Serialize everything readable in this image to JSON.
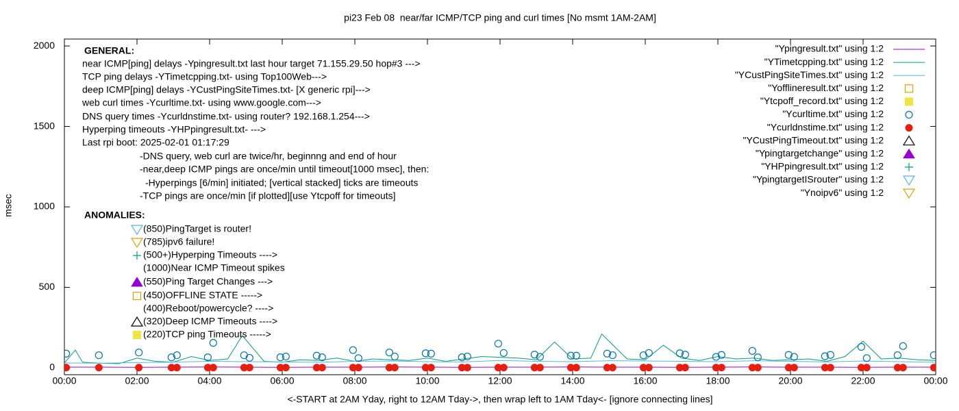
{
  "chart_data": {
    "type": "line",
    "title": "pi23 Feb 08  near/far ICMP/TCP ping and curl times [No msmt 1AM-2AM]",
    "xlabel": "<-START at 2AM Yday, right to 12AM Tday->, then wrap left to 1AM Tday<- [ignore connecting lines]",
    "ylabel": "msec",
    "xlim": [
      0,
      24
    ],
    "xticks": [
      {
        "value": 0,
        "label": "00:00"
      },
      {
        "value": 2,
        "label": "02:00"
      },
      {
        "value": 4,
        "label": "04:00"
      },
      {
        "value": 6,
        "label": "06:00"
      },
      {
        "value": 8,
        "label": "08:00"
      },
      {
        "value": 10,
        "label": "10:00"
      },
      {
        "value": 12,
        "label": "12:00"
      },
      {
        "value": 14,
        "label": "14:00"
      },
      {
        "value": 16,
        "label": "16:00"
      },
      {
        "value": 18,
        "label": "18:00"
      },
      {
        "value": 20,
        "label": "20:00"
      },
      {
        "value": 22,
        "label": "22:00"
      },
      {
        "value": 24,
        "label": "00:00"
      }
    ],
    "ylim": [
      -43,
      2043
    ],
    "yticks": [
      0,
      500,
      1000,
      1500,
      2000
    ],
    "grid": false,
    "legend_position": "top-right",
    "annotations": [
      "GENERAL:",
      "near ICMP[ping] delays -Ypingresult.txt last hour target 71.155.29.50 hop#3 --->",
      "TCP ping delays -YTimetcpping.txt- using Top100Web--->",
      "deep ICMP[ping] delays -YCustPingSiteTimes.txt- [X generic rpi]--->",
      "web curl times -Ycurltime.txt- using www.google.com--->",
      "DNS query times -Ycurldnstime.txt- using router? 192.168.1.254--->",
      "Hyperping timeouts -YHPpingresult.txt- --->",
      "Last rpi boot: 2025-02-01 01:17:29",
      "-DNS query, web curl are twice/hr, beginnng and end of hour",
      "-near,deep ICMP pings are once/min until timeout[1000 msec], then:",
      "-Hyperpings [6/min] initiated; [vertical stacked] ticks are timeouts",
      "-TCP pings are once/min [if plotted][use Ytcpoff for timeouts]",
      "ANOMALIES:",
      "(850)PingTarget is router!",
      "(785)ipv6 failure!",
      "(500+)Hyperping Timeouts ---->",
      "(1000)Near ICMP Timeout spikes",
      "(550)Ping Target Changes --->",
      "(450)OFFLINE STATE ----->",
      "(400)Reboot/powercycle? ---->",
      "(320)Deep ICMP Timeouts ---->",
      "(220)TCP ping Timeouts ----->"
    ],
    "series": [
      {
        "name": "\"Ypingresult.txt\" using 1:2",
        "color": "#9400d3",
        "style": "line",
        "x": [
          0,
          1,
          2,
          3,
          4,
          5,
          6,
          7,
          8,
          9,
          10,
          11,
          12,
          13,
          14,
          15,
          16,
          17,
          18,
          19,
          20,
          21,
          22,
          23,
          24
        ],
        "values": [
          4,
          4,
          3,
          4,
          5,
          4,
          3,
          4,
          4,
          5,
          4,
          3,
          4,
          4,
          5,
          4,
          4,
          3,
          4,
          5,
          4,
          4,
          3,
          4,
          4
        ]
      },
      {
        "name": "\"YTimetcpping.txt\" using 1:2",
        "color": "#009e73",
        "style": "line",
        "x": [
          0,
          0.3,
          0.5,
          1,
          1.5,
          2,
          2.5,
          3,
          3.5,
          4,
          4.5,
          4.9,
          5.5,
          6,
          6.5,
          7,
          7.5,
          8,
          8.5,
          9,
          9.5,
          10,
          10.5,
          11,
          11.5,
          12,
          12.5,
          13,
          13.5,
          14,
          14.5,
          14.8,
          15.5,
          16,
          16.5,
          17,
          17.5,
          18,
          18.5,
          19,
          19.5,
          20,
          20.5,
          21,
          21.5,
          22,
          22.5,
          23,
          23.5,
          24
        ],
        "values": [
          30,
          110,
          35,
          28,
          25,
          60,
          40,
          35,
          70,
          45,
          55,
          200,
          40,
          35,
          50,
          45,
          60,
          40,
          55,
          50,
          45,
          60,
          40,
          55,
          70,
          65,
          60,
          50,
          160,
          55,
          60,
          210,
          55,
          50,
          140,
          60,
          45,
          70,
          55,
          60,
          45,
          50,
          55,
          40,
          70,
          165,
          55,
          60,
          50,
          45
        ]
      },
      {
        "name": "\"YCustPingSiteTimes.txt\" using 1:2",
        "color": "#56b4e9",
        "style": "line",
        "x": [
          0,
          1,
          2,
          3,
          4,
          5,
          6,
          7,
          8,
          9,
          10,
          11,
          12,
          13,
          14,
          15,
          16,
          17,
          18,
          19,
          20,
          21,
          22,
          23,
          24
        ],
        "values": [
          30,
          28,
          32,
          35,
          40,
          38,
          36,
          34,
          40,
          42,
          38,
          36,
          45,
          40,
          38,
          44,
          42,
          40,
          38,
          44,
          40,
          36,
          42,
          38,
          34
        ]
      },
      {
        "name": "\"Yofflineresult.txt\" using 1:2",
        "color": "#e69f00",
        "style": "points",
        "marker": "square-open"
      },
      {
        "name": "\"Ytcpoff_record.txt\" using 1:2",
        "color": "#f0e442",
        "style": "points",
        "marker": "square-filled"
      },
      {
        "name": "\"Ycurltime.txt\" using 1:2",
        "color": "#0072b2",
        "style": "points",
        "marker": "circle-open",
        "x": [
          0.05,
          0.95,
          2.05,
          2.95,
          3.1,
          3.95,
          4.1,
          4.95,
          5.1,
          5.95,
          6.1,
          6.95,
          7.1,
          7.95,
          8.1,
          8.95,
          9.1,
          9.95,
          10.1,
          10.95,
          11.1,
          11.95,
          12.1,
          12.95,
          13.1,
          13.95,
          14.1,
          14.95,
          15.1,
          15.95,
          16.1,
          16.95,
          17.1,
          17.95,
          18.1,
          18.95,
          19.1,
          19.95,
          20.1,
          20.95,
          21.1,
          21.95,
          22.1,
          22.95,
          23.1,
          23.95
        ],
        "values": [
          88,
          78,
          95,
          65,
          78,
          65,
          155,
          78,
          62,
          65,
          70,
          75,
          65,
          110,
          60,
          95,
          70,
          90,
          88,
          65,
          70,
          150,
          92,
          82,
          68,
          75,
          75,
          88,
          78,
          78,
          92,
          90,
          82,
          68,
          80,
          105,
          65,
          80,
          68,
          72,
          80,
          130,
          60,
          78,
          135,
          78
        ]
      },
      {
        "name": "\"Ycurldnstime.txt\" using 1:2",
        "color": "#e51e10",
        "style": "points",
        "marker": "circle-filled",
        "x": [
          0.05,
          0.95,
          2.05,
          2.95,
          3.1,
          3.95,
          4.1,
          4.95,
          5.1,
          5.95,
          6.1,
          6.95,
          7.1,
          7.95,
          8.1,
          8.95,
          9.1,
          9.95,
          10.1,
          10.95,
          11.1,
          11.95,
          12.1,
          12.95,
          13.1,
          13.95,
          14.1,
          14.95,
          15.1,
          15.95,
          16.1,
          16.95,
          17.1,
          17.95,
          18.1,
          18.95,
          19.1,
          19.95,
          20.1,
          20.95,
          21.1,
          21.95,
          22.1,
          22.95,
          23.1,
          23.95
        ],
        "values": [
          1,
          1,
          1,
          1,
          1,
          1,
          1,
          1,
          1,
          1,
          1,
          1,
          1,
          1,
          1,
          1,
          1,
          1,
          1,
          1,
          1,
          1,
          1,
          1,
          1,
          1,
          1,
          1,
          1,
          1,
          1,
          1,
          1,
          1,
          1,
          1,
          1,
          1,
          1,
          1,
          1,
          1,
          1,
          1,
          1,
          1
        ]
      },
      {
        "name": "\"YCustPingTimeout.txt\" using 1:2",
        "color": "#000000",
        "style": "points",
        "marker": "triangle-open"
      },
      {
        "name": "\"Ypingtargetchange\" using 1:2",
        "color": "#9400d3",
        "style": "points",
        "marker": "triangle-filled"
      },
      {
        "name": "\"YHPpingresult.txt\" using 1:2",
        "color": "#009e73",
        "style": "points",
        "marker": "plus"
      },
      {
        "name": "\"YpingtargetISrouter\" using 1:2",
        "color": "#56b4e9",
        "style": "points",
        "marker": "down-triangle-open"
      },
      {
        "name": "\"Ynoipv6\" using 1:2",
        "color": "#e69f00",
        "style": "points",
        "marker": "down-triangle-open"
      }
    ]
  }
}
